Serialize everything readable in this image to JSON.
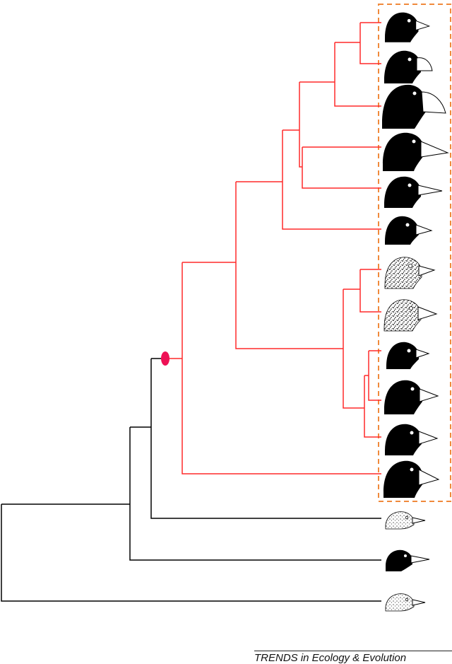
{
  "figure": {
    "credit": "TRENDS in Ecology & Evolution",
    "colors": {
      "highlight_clade": "#ff2a2a",
      "outgroup_lines": "#000000",
      "node_marker": "#ee1155",
      "group_box": "#f08a3c",
      "bird_fill": "#000000",
      "beak_fill": "#ffffff"
    },
    "highlighted_clade": {
      "marker_shape": "ellipse",
      "box_style": "dashed"
    },
    "tips": [
      {
        "id": "tip-1",
        "group": "highlighted",
        "style": "solid",
        "beak": "conical-small"
      },
      {
        "id": "tip-2",
        "group": "highlighted",
        "style": "solid",
        "beak": "conical-medium"
      },
      {
        "id": "tip-3",
        "group": "highlighted",
        "style": "solid",
        "beak": "conical-large"
      },
      {
        "id": "tip-4",
        "group": "highlighted",
        "style": "solid",
        "beak": "long-pointed"
      },
      {
        "id": "tip-5",
        "group": "highlighted",
        "style": "solid",
        "beak": "long-pointed"
      },
      {
        "id": "tip-6",
        "group": "highlighted",
        "style": "solid",
        "beak": "small"
      },
      {
        "id": "tip-7",
        "group": "highlighted",
        "style": "speckled",
        "beak": "medium"
      },
      {
        "id": "tip-8",
        "group": "highlighted",
        "style": "speckled",
        "beak": "medium"
      },
      {
        "id": "tip-9",
        "group": "highlighted",
        "style": "solid",
        "beak": "small"
      },
      {
        "id": "tip-10",
        "group": "highlighted",
        "style": "solid",
        "beak": "medium"
      },
      {
        "id": "tip-11",
        "group": "highlighted",
        "style": "solid",
        "beak": "medium"
      },
      {
        "id": "tip-12",
        "group": "highlighted",
        "style": "solid",
        "beak": "large"
      },
      {
        "id": "tip-13",
        "group": "outgroup",
        "style": "sketch",
        "beak": "thin"
      },
      {
        "id": "tip-14",
        "group": "outgroup",
        "style": "solid-small",
        "beak": "thin"
      },
      {
        "id": "tip-15",
        "group": "outgroup",
        "style": "sketch",
        "beak": "thin"
      }
    ]
  }
}
